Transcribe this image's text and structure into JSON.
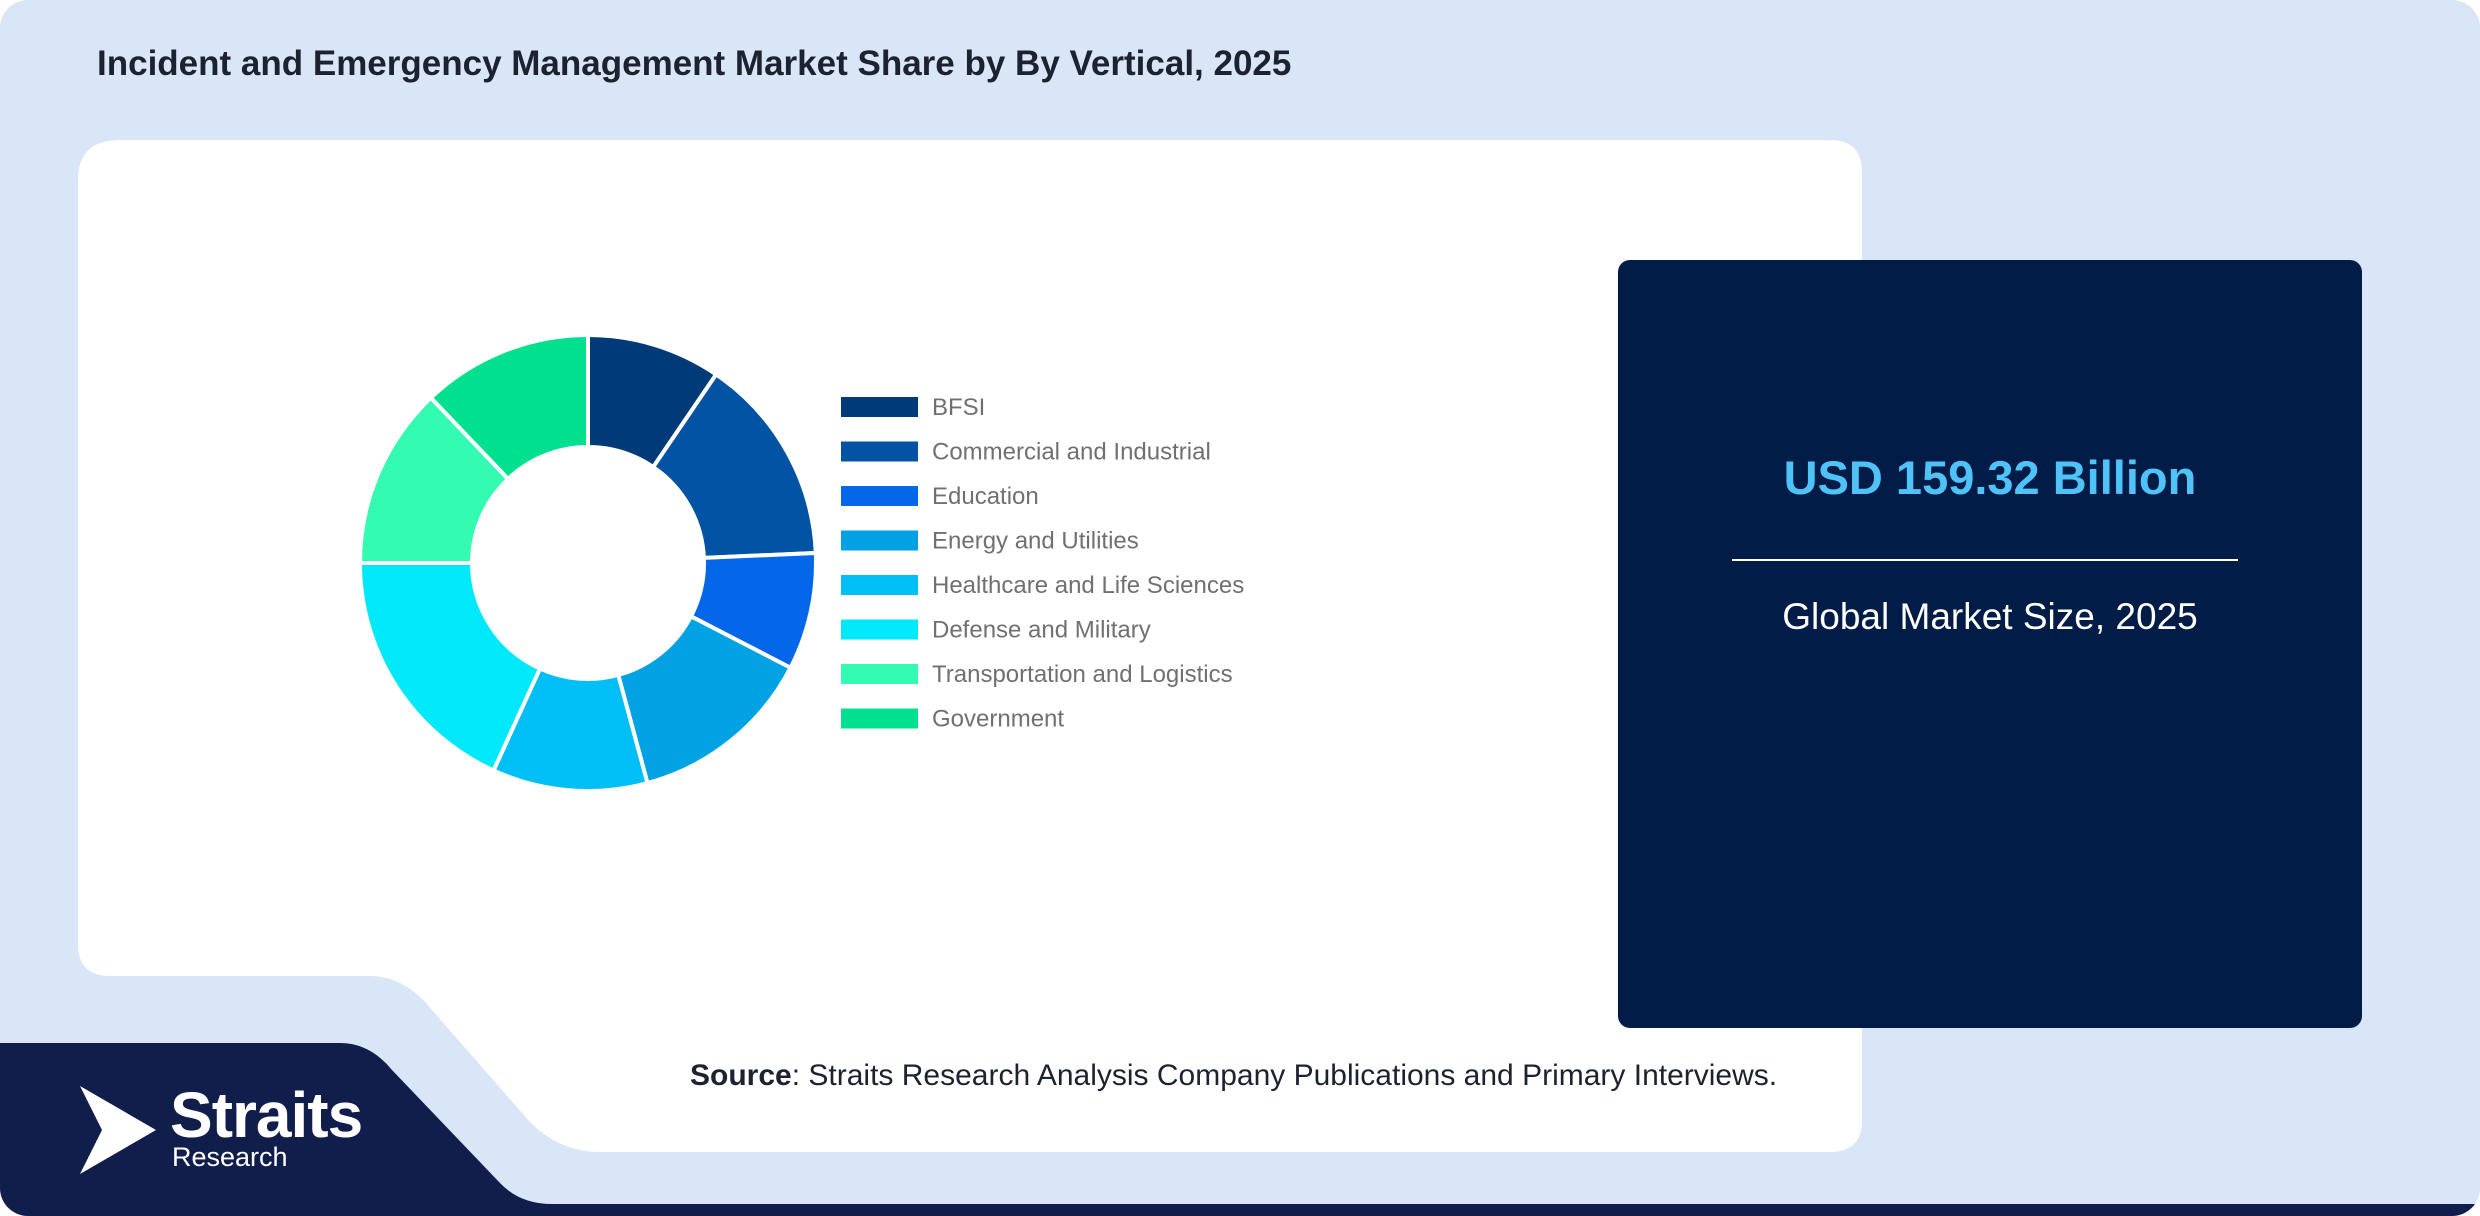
{
  "title": "Incident and Emergency Management Market Share by By Vertical, 2025",
  "chart_data": {
    "type": "pie",
    "donut": true,
    "categories": [
      "BFSI",
      "Commercial and Industrial",
      "Education",
      "Energy and Utilities",
      "Healthcare and Life Sciences",
      "Defense and Military",
      "Transportation and Logistics",
      "Government"
    ],
    "values": [
      9.5,
      14.8,
      8.3,
      13.2,
      11.0,
      18.2,
      12.9,
      12.1
    ],
    "colors": [
      "#003a78",
      "#0353a4",
      "#0466e8",
      "#00a2e3",
      "#00bff6",
      "#00e9fb",
      "#33fbb1",
      "#00e08e"
    ],
    "legend_position": "right"
  },
  "stat": {
    "value": "USD 159.32 Billion",
    "label": "Global Market Size, 2025",
    "value_color": "#4fc3f7",
    "background": "#001c47"
  },
  "source": {
    "label": "Source",
    "text": ": Straits Research Analysis Company Publications and Primary Interviews."
  },
  "logo": {
    "name": "Straits",
    "sub": "Research"
  }
}
